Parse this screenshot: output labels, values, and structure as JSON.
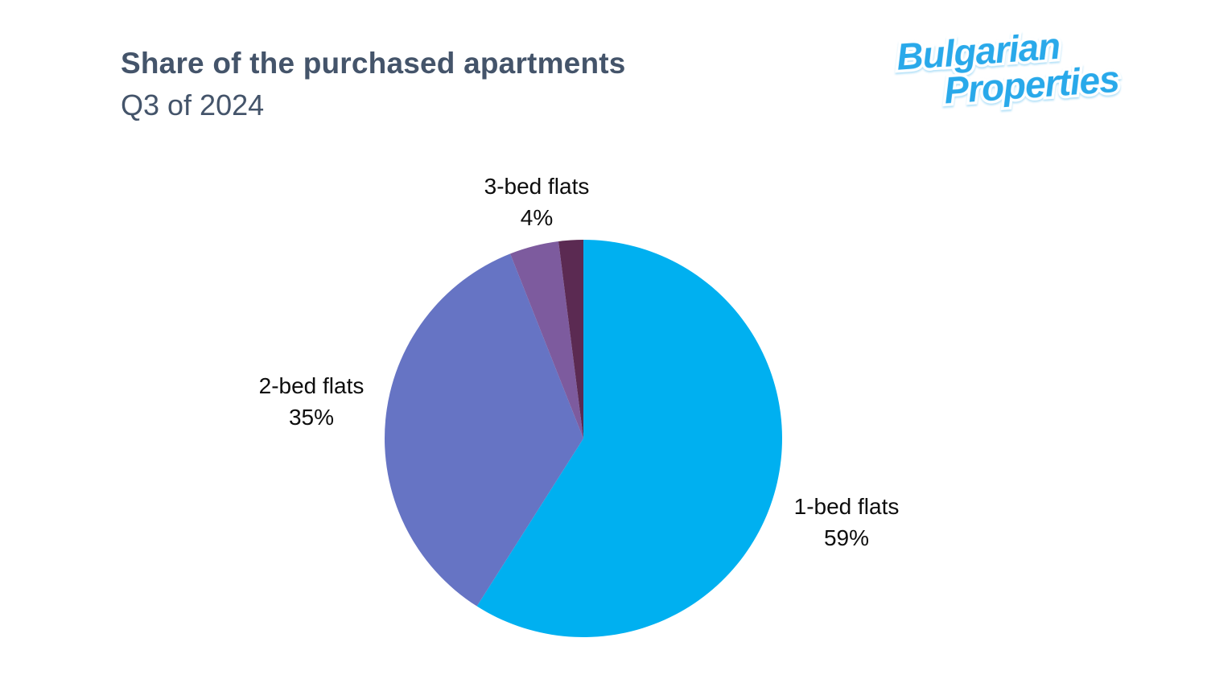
{
  "logo": {
    "line1": "Bulgarian",
    "line2": "Properties"
  },
  "chart_data": {
    "type": "pie",
    "title": "Share of the purchased apartments",
    "subtitle": "Q3 of 2024",
    "categories": [
      "1-bed flats",
      "2-bed flats",
      "3-bed flats",
      ""
    ],
    "values": [
      59,
      35,
      4,
      2
    ],
    "colors": [
      "#00b0f0",
      "#6674c4",
      "#7d5b9e",
      "#5b2a52"
    ],
    "start_angle": 0,
    "direction": "clockwise",
    "legend": "none",
    "labels": [
      {
        "text": "1-bed flats",
        "percent": "59%"
      },
      {
        "text": "2-bed flats",
        "percent": "35%"
      },
      {
        "text": "3-bed flats",
        "percent": "4%"
      }
    ]
  }
}
